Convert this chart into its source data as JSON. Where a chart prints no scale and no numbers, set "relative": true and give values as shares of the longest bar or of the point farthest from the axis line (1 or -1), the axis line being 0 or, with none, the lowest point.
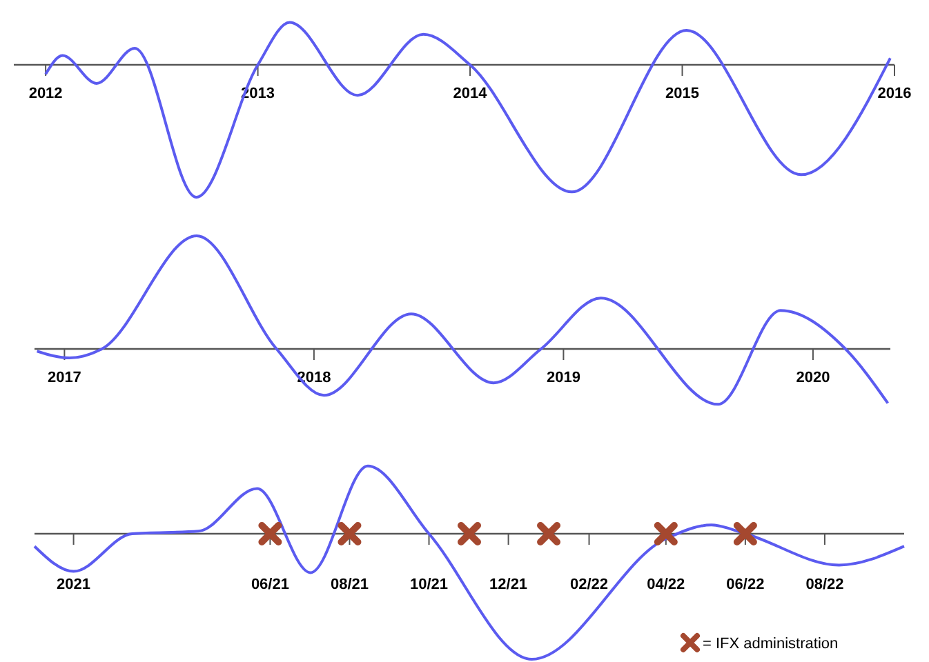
{
  "chart_data": [
    {
      "type": "line",
      "relative": true,
      "xlim": [
        2011.85,
        2016
      ],
      "xticks": [
        2012,
        2013,
        2014,
        2015,
        2016
      ],
      "x": [
        2012.0,
        2012.08,
        2012.24,
        2012.42,
        2012.71,
        2013.0,
        2013.15,
        2013.47,
        2013.78,
        2014.0,
        2014.48,
        2015.02,
        2015.56,
        2015.98
      ],
      "series": [
        {
          "color": "#5b5bf0",
          "values": [
            -0.07,
            0.07,
            -0.14,
            0.125,
            -1,
            0,
            0.32,
            -0.23,
            0.23,
            0,
            -0.96,
            0.26,
            -0.83,
            0.05
          ]
        }
      ]
    },
    {
      "type": "line",
      "relative": true,
      "xlim": [
        2016.88,
        2020.31
      ],
      "xticks": [
        2017,
        2018,
        2019,
        2020
      ],
      "x": [
        2016.89,
        2017.02,
        2017.15,
        2017.53,
        2017.85,
        2018.04,
        2018.39,
        2018.72,
        2018.91,
        2019.15,
        2019.62,
        2019.87,
        2020.13,
        2020.3
      ],
      "series": [
        {
          "color": "#5b5bf0",
          "values": [
            -0.02,
            -0.08,
            0,
            1,
            0,
            -0.41,
            0.31,
            -0.3,
            0,
            0.45,
            -0.49,
            0.34,
            0,
            -0.48
          ]
        }
      ]
    },
    {
      "type": "line",
      "relative": true,
      "xlim": [
        "2020-12-02",
        "2022-10-01"
      ],
      "xticks": [
        {
          "value": "2021-01-01",
          "label": "2021"
        },
        {
          "value": "2021-06-01",
          "label": "06/21"
        },
        {
          "value": "2021-08-01",
          "label": "08/21"
        },
        {
          "value": "2021-10-01",
          "label": "10/21"
        },
        {
          "value": "2021-12-01",
          "label": "12/21"
        },
        {
          "value": "2022-02-01",
          "label": "02/22"
        },
        {
          "value": "2022-04-01",
          "label": "04/22"
        },
        {
          "value": "2022-06-01",
          "label": "06/22"
        },
        {
          "value": "2022-08-01",
          "label": "08/22"
        }
      ],
      "x": [
        "2020-12-02",
        "2021-01-01",
        "2021-02-15",
        "2021-04-07",
        "2021-05-22",
        "2021-07-02",
        "2021-08-15",
        "2021-10-01",
        "2021-12-19",
        "2022-04-01",
        "2022-05-06",
        "2022-06-01",
        "2022-08-12",
        "2022-10-01"
      ],
      "legend": "bottom right",
      "series": [
        {
          "color": "#5b5bf0",
          "values": [
            -0.1,
            -0.3,
            0,
            0.02,
            0.36,
            -0.31,
            0.54,
            0,
            -1,
            -0.04,
            0.07,
            0,
            -0.25,
            -0.1
          ]
        },
        {
          "type": "scatter",
          "name": "= IFX administration",
          "color": "#a5482f",
          "marker": "cross",
          "x": [
            "2021-06-01",
            "2021-08-01",
            "2021-11-01",
            "2022-01-01",
            "2022-04-01",
            "2022-06-01"
          ],
          "values": [
            0,
            0,
            0,
            0,
            0,
            0
          ]
        }
      ]
    }
  ]
}
